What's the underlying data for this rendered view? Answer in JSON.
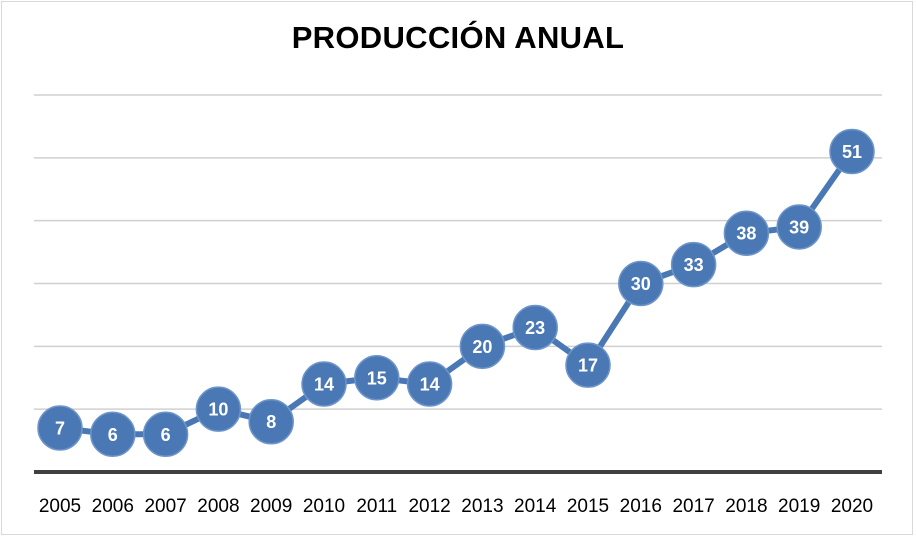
{
  "chart_data": {
    "type": "line",
    "title": "PRODUCCIÓN ANUAL",
    "xlabel": "",
    "ylabel": "",
    "categories": [
      "2005",
      "2006",
      "2007",
      "2008",
      "2009",
      "2010",
      "2011",
      "2012",
      "2013",
      "2014",
      "2015",
      "2016",
      "2017",
      "2018",
      "2019",
      "2020"
    ],
    "series": [
      {
        "values": [
          7,
          6,
          6,
          10,
          8,
          14,
          15,
          14,
          20,
          23,
          17,
          30,
          33,
          38,
          39,
          51
        ]
      }
    ],
    "ylim": [
      0,
      60
    ],
    "y_gridlines": [
      10,
      20,
      30,
      40,
      50,
      60
    ],
    "y_tick_labels_shown": false,
    "grid": true,
    "legend": "none",
    "data_labels": "inside markers",
    "colors": {
      "series": "#4a78b5",
      "marker_border": "#6e95c9",
      "grid": "#d0d0d0",
      "axis": "#404040",
      "label_text": "#ffffff"
    }
  }
}
